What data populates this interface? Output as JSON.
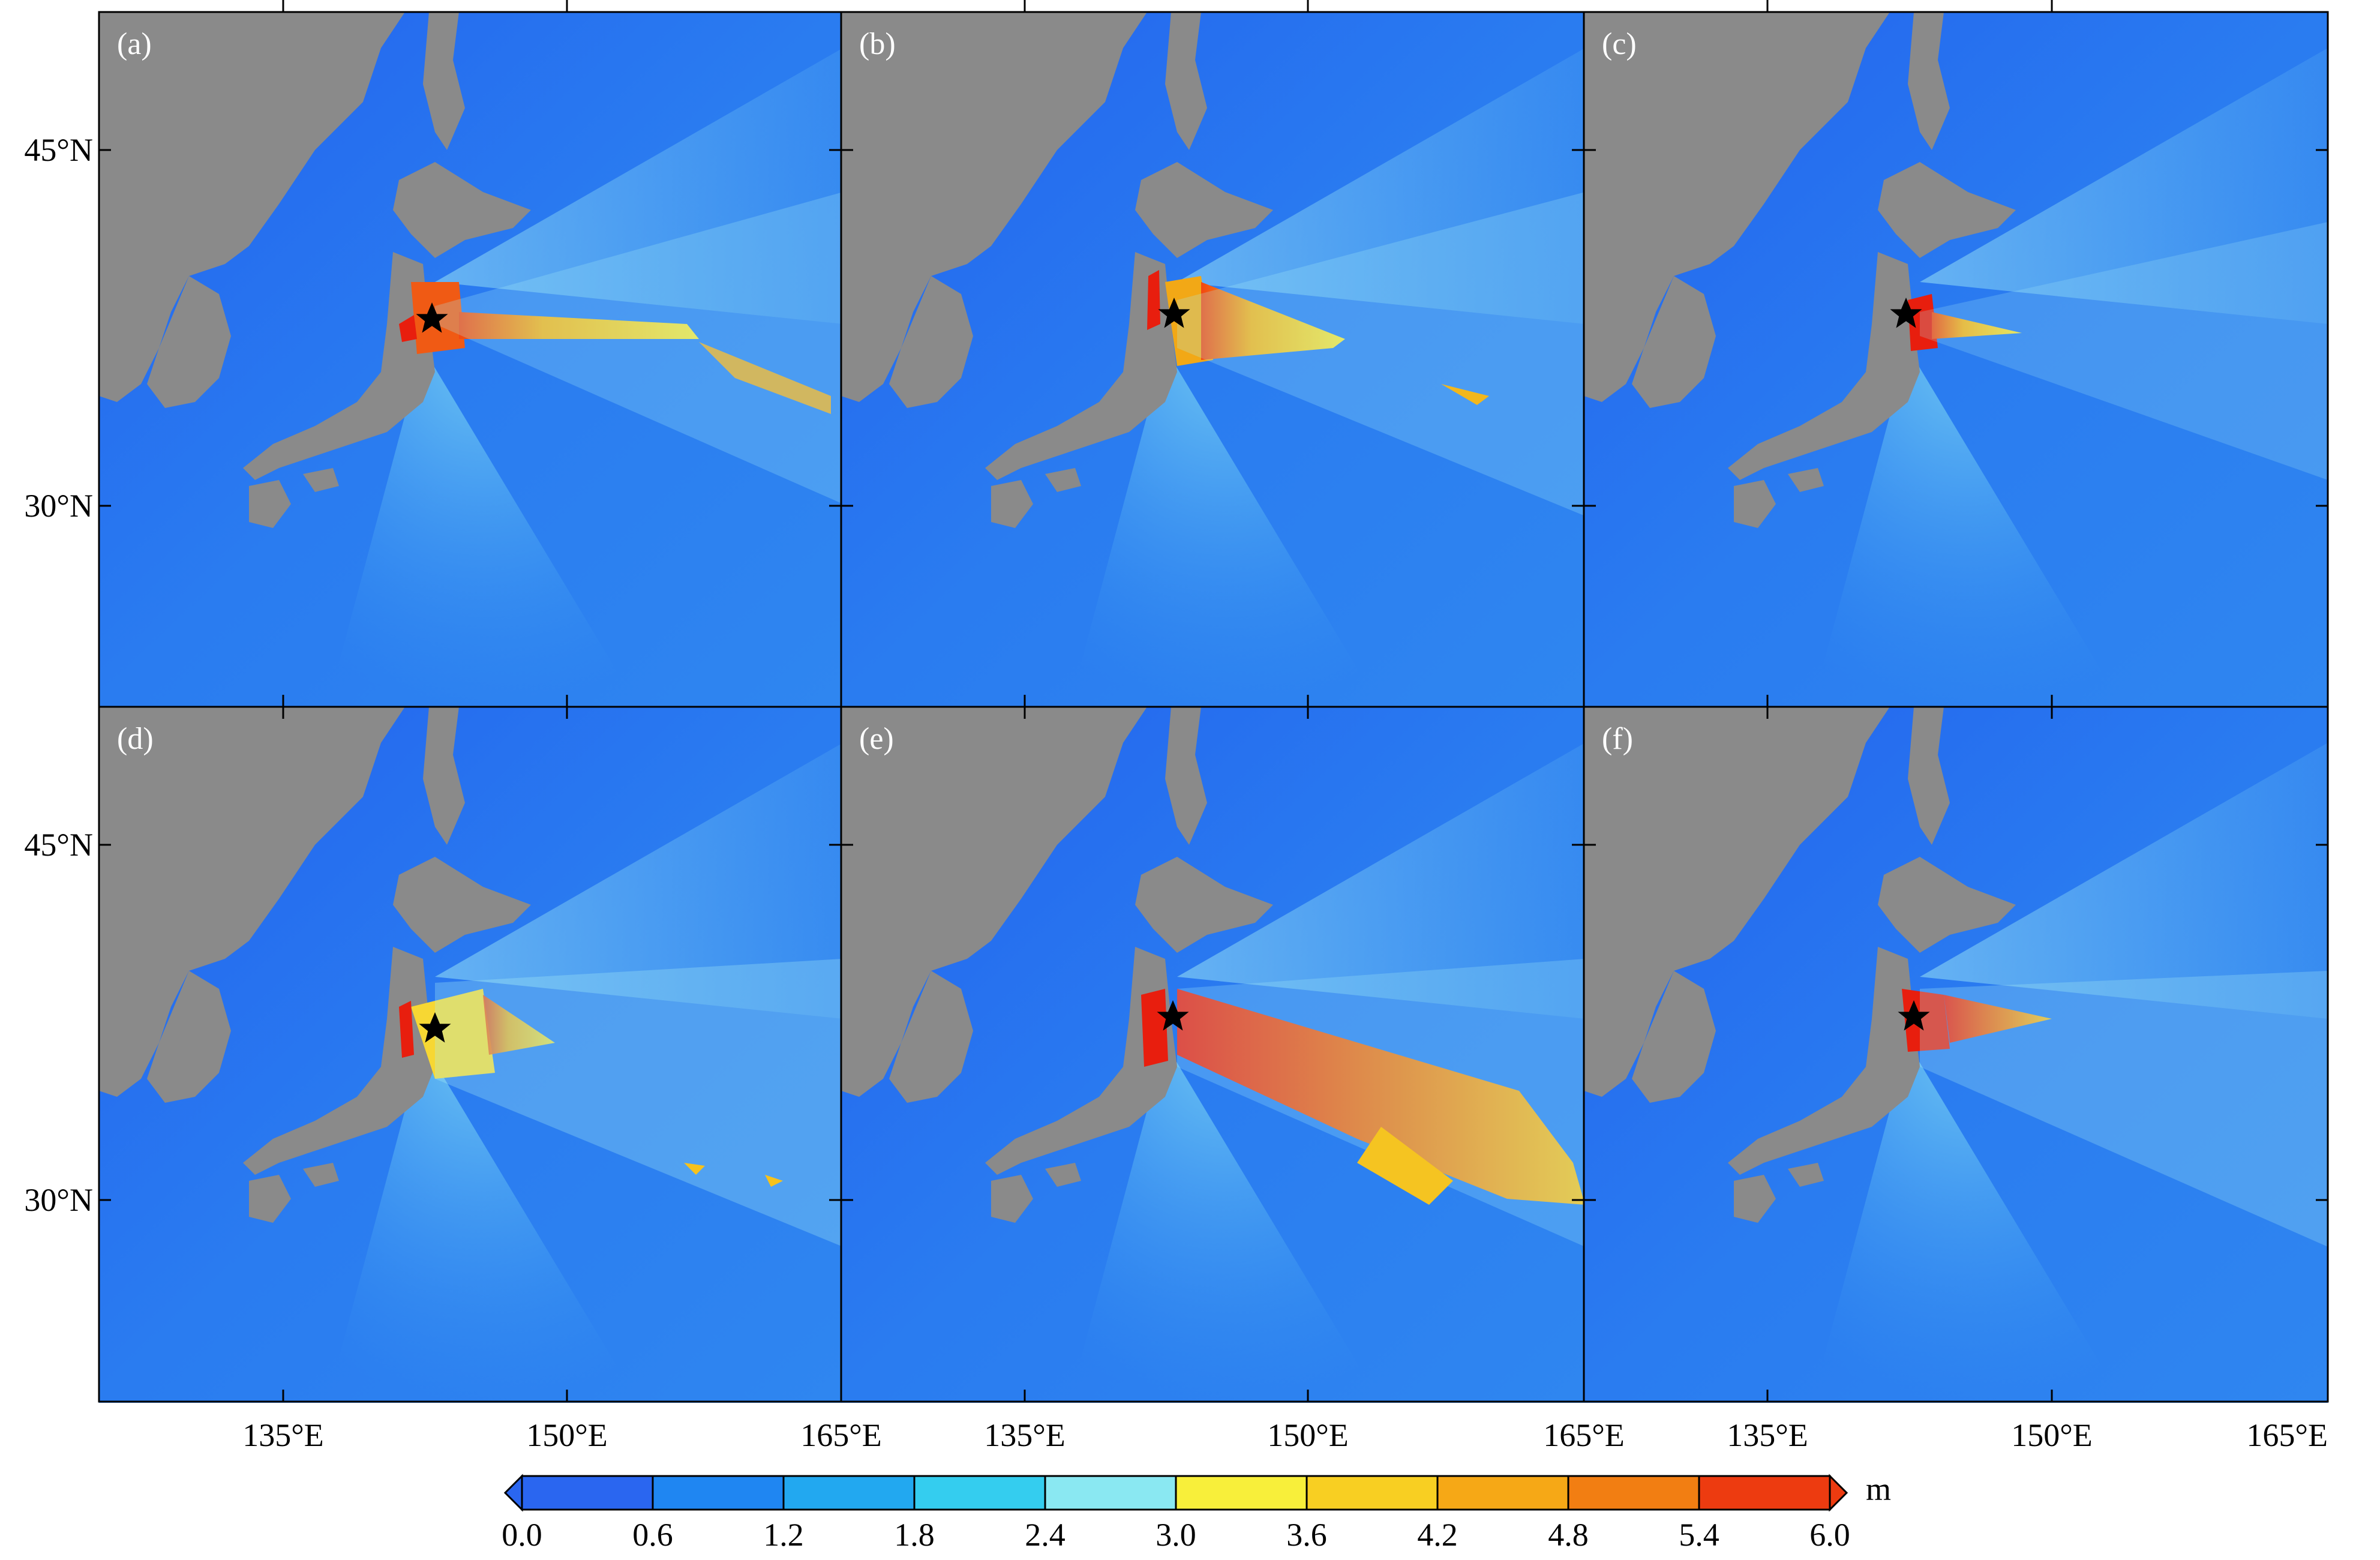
{
  "panels": [
    {
      "id": "a",
      "label": "(a)"
    },
    {
      "id": "b",
      "label": "(b)"
    },
    {
      "id": "c",
      "label": "(c)"
    },
    {
      "id": "d",
      "label": "(d)"
    },
    {
      "id": "e",
      "label": "(e)"
    },
    {
      "id": "f",
      "label": "(f)"
    }
  ],
  "axes": {
    "lat_labels": [
      "45°N",
      "30°N"
    ],
    "lon_labels": [
      "135°E",
      "150°E",
      "165°E"
    ]
  },
  "colorbar": {
    "unit": "m",
    "ticks": [
      "0.0",
      "0.6",
      "1.2",
      "1.8",
      "2.4",
      "3.0",
      "3.6",
      "4.2",
      "4.8",
      "5.4",
      "6.0"
    ],
    "colors": [
      "#2a66f0",
      "#1f86f2",
      "#22a8f0",
      "#34cdef",
      "#8ae8f2",
      "#f8ef3a",
      "#f8cf22",
      "#f6a816",
      "#f27e12",
      "#ed3b10"
    ]
  }
}
